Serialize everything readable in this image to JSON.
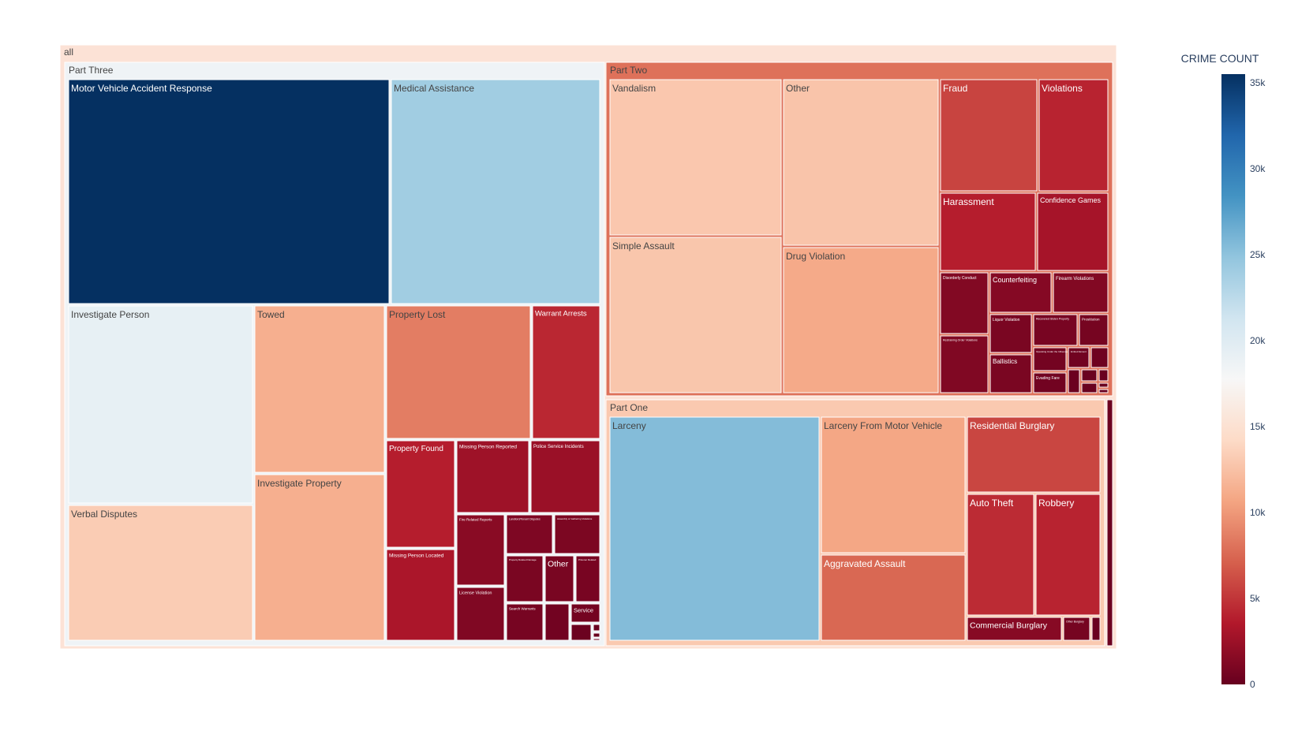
{
  "chart_data": {
    "type": "treemap",
    "title": "",
    "root_label": "all",
    "colorbar": {
      "title": "CRIME COUNT",
      "range": [
        0,
        35500
      ],
      "ticks": [
        0,
        5000,
        10000,
        15000,
        20000,
        25000,
        30000,
        35000
      ],
      "tick_labels": [
        "0",
        "5k",
        "10k",
        "15k",
        "20k",
        "25k",
        "30k",
        "35k"
      ],
      "colorscale": [
        "#67001f",
        "#b2182b",
        "#d6604d",
        "#f4a582",
        "#fddbc7",
        "#f7f7f7",
        "#d1e5f0",
        "#92c5de",
        "#4393c3",
        "#2166ac",
        "#053061"
      ]
    },
    "groups": [
      {
        "name": "Part Three",
        "value": 18500,
        "children": [
          {
            "name": "Motor Vehicle Accident Response",
            "value": 35500
          },
          {
            "name": "Medical Assistance",
            "value": 24000
          },
          {
            "name": "Investigate Person",
            "value": 19200
          },
          {
            "name": "Verbal Disputes",
            "value": 13200
          },
          {
            "name": "Towed",
            "value": 11300
          },
          {
            "name": "Investigate Property",
            "value": 11300
          },
          {
            "name": "Property Lost",
            "value": 8600
          },
          {
            "name": "Warrant Arrests",
            "value": 4300
          },
          {
            "name": "Property Found",
            "value": 3800
          },
          {
            "name": "Missing Person Reported",
            "value": 2600
          },
          {
            "name": "Police Service Incidents",
            "value": 2400
          },
          {
            "name": "Missing Person Located",
            "value": 3200
          },
          {
            "name": "Fire Related Reports",
            "value": 1600
          },
          {
            "name": "Landlord/Tenant Disputes",
            "value": 1100
          },
          {
            "name": "Assembly or Gathering Violations",
            "value": 1000
          },
          {
            "name": "Property Related Damage",
            "value": 900
          },
          {
            "name": "Other",
            "value": 850
          },
          {
            "name": "Prisoner Related",
            "value": 800
          },
          {
            "name": "License Violation",
            "value": 1200
          },
          {
            "name": "Search Warrants",
            "value": 750
          },
          {
            "name": "",
            "value": 500
          },
          {
            "name": "Service",
            "value": 600
          },
          {
            "name": "",
            "value": 250
          },
          {
            "name": "",
            "value": 100
          },
          {
            "name": "",
            "value": 60
          },
          {
            "name": "",
            "value": 40
          }
        ]
      },
      {
        "name": "Part Two",
        "value": 8000,
        "children": [
          {
            "name": "Vandalism",
            "value": 12900
          },
          {
            "name": "Simple Assault",
            "value": 12800
          },
          {
            "name": "Other",
            "value": 12700
          },
          {
            "name": "Drug Violation",
            "value": 11000
          },
          {
            "name": "Fraud",
            "value": 5700
          },
          {
            "name": "Violations",
            "value": 4100
          },
          {
            "name": "Harassment",
            "value": 3800
          },
          {
            "name": "Confidence Games",
            "value": 3000
          },
          {
            "name": "Disorderly Conduct",
            "value": 1300
          },
          {
            "name": "Counterfeiting",
            "value": 1400
          },
          {
            "name": "Firearm Violations",
            "value": 1300
          },
          {
            "name": "Restraining Order Violations",
            "value": 1200
          },
          {
            "name": "Liquor Violation",
            "value": 900
          },
          {
            "name": "Recovered Stolen Property",
            "value": 800
          },
          {
            "name": "Prostitution",
            "value": 700
          },
          {
            "name": "Ballistics",
            "value": 900
          },
          {
            "name": "Operating Under the Influence",
            "value": 600
          },
          {
            "name": "Embezzlement",
            "value": 450
          },
          {
            "name": "",
            "value": 350
          },
          {
            "name": "Evading Fare",
            "value": 500
          },
          {
            "name": "",
            "value": 200
          },
          {
            "name": "",
            "value": 150
          },
          {
            "name": "",
            "value": 120
          },
          {
            "name": "",
            "value": 100
          },
          {
            "name": "",
            "value": 80
          },
          {
            "name": "",
            "value": 60
          }
        ]
      },
      {
        "name": "Part One",
        "value": 13000,
        "children": [
          {
            "name": "Larceny",
            "value": 25500
          },
          {
            "name": "Larceny From Motor Vehicle",
            "value": 10800
          },
          {
            "name": "Aggravated Assault",
            "value": 7500
          },
          {
            "name": "Residential Burglary",
            "value": 5800
          },
          {
            "name": "Auto Theft",
            "value": 4500
          },
          {
            "name": "Robbery",
            "value": 4100
          },
          {
            "name": "Commercial Burglary",
            "value": 1500
          },
          {
            "name": "Other Burglary",
            "value": 700
          },
          {
            "name": "",
            "value": 200
          },
          {
            "name": "",
            "value": 300
          }
        ]
      }
    ]
  }
}
